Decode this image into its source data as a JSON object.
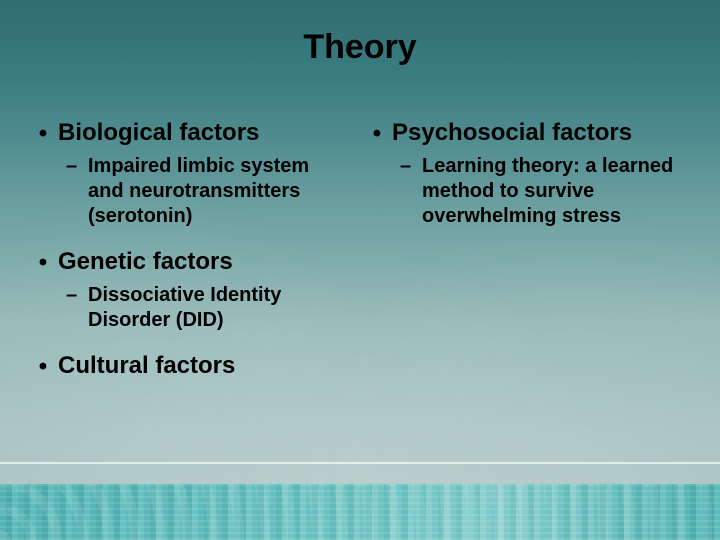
{
  "title": "Theory",
  "columns": {
    "left": [
      {
        "heading": "Biological factors",
        "sub": [
          "Impaired limbic system and neurotransmitters (serotonin)"
        ]
      },
      {
        "heading": "Genetic factors",
        "sub": [
          "Dissociative Identity Disorder (DID)"
        ]
      },
      {
        "heading": "Cultural factors",
        "sub": []
      }
    ],
    "right": [
      {
        "heading": "Psychosocial factors",
        "sub": [
          "Learning theory: a learned method to survive overwhelming stress"
        ]
      }
    ]
  },
  "style": {
    "background_gradient": [
      "#2f6d71",
      "#3a7d81",
      "#6fa1a2",
      "#96b9b8",
      "#a8c3c1",
      "#afc8c5"
    ],
    "text_color": "#000000",
    "title_fontsize_pt": 26,
    "l1_fontsize_pt": 18,
    "l2_fontsize_pt": 15,
    "font_weight": "bold",
    "footer_rule_color": "rgba(255,255,255,0.65)",
    "footer_band_colors": [
      "#4f8f91",
      "#6aa3a4",
      "#8cb6b5"
    ],
    "bullet_l1_glyph": "•",
    "bullet_l2_glyph": "–"
  }
}
